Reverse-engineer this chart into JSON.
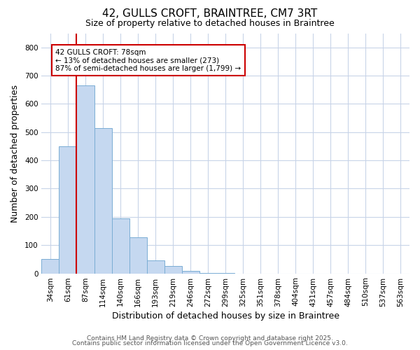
{
  "title_line1": "42, GULLS CROFT, BRAINTREE, CM7 3RT",
  "title_line2": "Size of property relative to detached houses in Braintree",
  "xlabel": "Distribution of detached houses by size in Braintree",
  "ylabel": "Number of detached properties",
  "categories": [
    "34sqm",
    "61sqm",
    "87sqm",
    "114sqm",
    "140sqm",
    "166sqm",
    "193sqm",
    "219sqm",
    "246sqm",
    "272sqm",
    "299sqm",
    "325sqm",
    "351sqm",
    "378sqm",
    "404sqm",
    "431sqm",
    "457sqm",
    "484sqm",
    "510sqm",
    "537sqm",
    "563sqm"
  ],
  "values": [
    50,
    450,
    665,
    515,
    195,
    128,
    47,
    27,
    8,
    2,
    1,
    0,
    0,
    0,
    0,
    0,
    0,
    0,
    0,
    0,
    0
  ],
  "bar_color": "#c5d8f0",
  "bar_edgecolor": "#7aadd4",
  "vline_x": 1.5,
  "vline_color": "#cc0000",
  "ylim": [
    0,
    850
  ],
  "yticks": [
    0,
    100,
    200,
    300,
    400,
    500,
    600,
    700,
    800
  ],
  "annotation_text": "42 GULLS CROFT: 78sqm\n← 13% of detached houses are smaller (273)\n87% of semi-detached houses are larger (1,799) →",
  "annotation_box_facecolor": "#ffffff",
  "annotation_box_edgecolor": "#cc0000",
  "background_color": "#ffffff",
  "plot_bg_color": "#ffffff",
  "grid_color": "#c8d4e8",
  "footer_line1": "Contains HM Land Registry data © Crown copyright and database right 2025.",
  "footer_line2": "Contains public sector information licensed under the Open Government Licence v3.0.",
  "title1_fontsize": 11,
  "title2_fontsize": 9,
  "xlabel_fontsize": 9,
  "ylabel_fontsize": 9,
  "tick_fontsize": 7.5,
  "footer_fontsize": 6.5
}
